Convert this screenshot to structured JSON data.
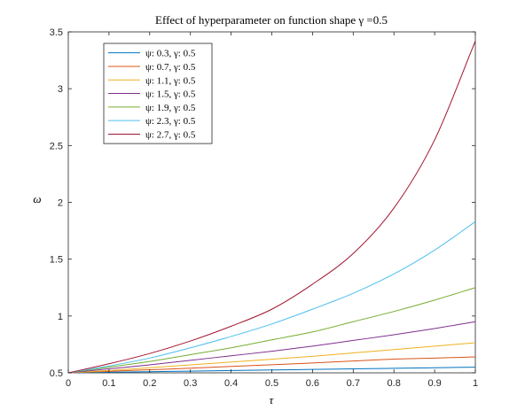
{
  "chart_data": {
    "type": "line",
    "title": "Effect of hyperparameter on function shape γ =0.5",
    "xlabel": "τ",
    "ylabel": "ω",
    "xlim": [
      0,
      1
    ],
    "ylim": [
      0.5,
      3.5
    ],
    "xticks": [
      0,
      0.1,
      0.2,
      0.3,
      0.4,
      0.5,
      0.6,
      0.7,
      0.8,
      0.9,
      1
    ],
    "xtick_labels": [
      "0",
      "0.1",
      "0.2",
      "0.3",
      "0.4",
      "0.5",
      "0.6",
      "0.7",
      "0.8",
      "0.9",
      "1"
    ],
    "yticks": [
      0.5,
      1,
      1.5,
      2,
      2.5,
      3,
      3.5
    ],
    "ytick_labels": [
      "0.5",
      "1",
      "1.5",
      "2",
      "2.5",
      "3",
      "3.5"
    ],
    "grid": false,
    "legend_position": "top-left",
    "x": [
      0,
      0.1,
      0.2,
      0.3,
      0.4,
      0.5,
      0.6,
      0.7,
      0.8,
      0.9,
      1
    ],
    "series": [
      {
        "name": "ψ: 0.3, γ: 0.5",
        "color": "#0072BD",
        "values": [
          0.5,
          0.505,
          0.51,
          0.515,
          0.52,
          0.525,
          0.53,
          0.535,
          0.54,
          0.545,
          0.55
        ]
      },
      {
        "name": "ψ: 0.7, γ: 0.5",
        "color": "#D95319",
        "values": [
          0.5,
          0.513,
          0.527,
          0.541,
          0.556,
          0.571,
          0.587,
          0.604,
          0.621,
          0.63,
          0.64
        ]
      },
      {
        "name": "ψ: 1.1, γ: 0.5",
        "color": "#EDB120",
        "values": [
          0.5,
          0.52,
          0.545,
          0.57,
          0.595,
          0.62,
          0.645,
          0.675,
          0.705,
          0.735,
          0.765
        ]
      },
      {
        "name": "ψ: 1.5, γ: 0.5",
        "color": "#7E2F8E",
        "values": [
          0.5,
          0.535,
          0.57,
          0.61,
          0.65,
          0.69,
          0.735,
          0.785,
          0.835,
          0.89,
          0.95
        ]
      },
      {
        "name": "ψ: 1.9, γ: 0.5",
        "color": "#77AC30",
        "values": [
          0.5,
          0.55,
          0.6,
          0.66,
          0.72,
          0.79,
          0.86,
          0.95,
          1.04,
          1.14,
          1.25
        ]
      },
      {
        "name": "ψ: 2.3, γ: 0.5",
        "color": "#4DBEEE",
        "values": [
          0.5,
          0.56,
          0.63,
          0.72,
          0.82,
          0.93,
          1.06,
          1.2,
          1.37,
          1.58,
          1.83
        ]
      },
      {
        "name": "ψ: 2.7, γ: 0.5",
        "color": "#A2142F",
        "values": [
          0.5,
          0.58,
          0.67,
          0.78,
          0.91,
          1.06,
          1.28,
          1.55,
          1.95,
          2.55,
          3.42
        ]
      }
    ]
  }
}
